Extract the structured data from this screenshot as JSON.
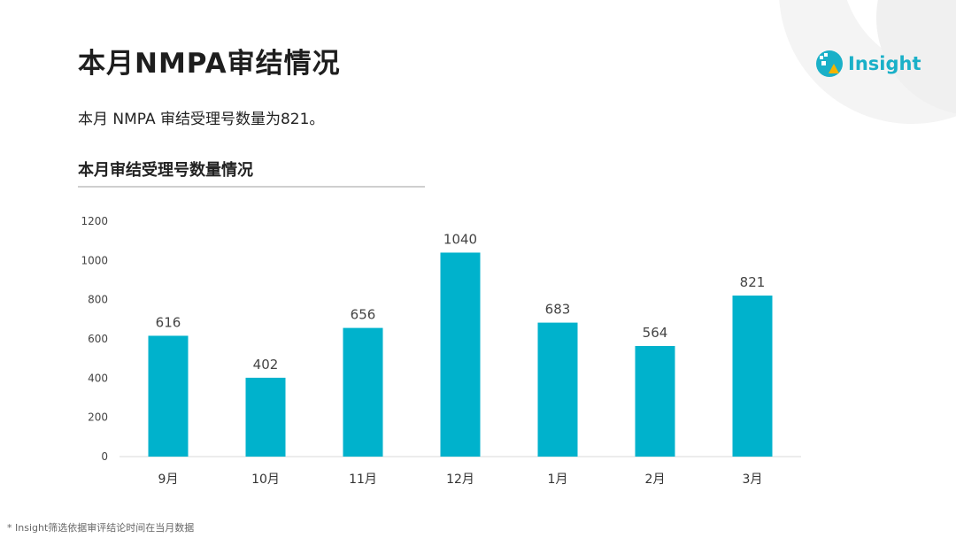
{
  "header": {
    "title": "本月NMPA审结情况",
    "logo_text": "Insight"
  },
  "summary": "本月 NMPA 审结受理号数量为821。",
  "section": {
    "title": "本月审结受理号数量情况"
  },
  "footnote": "* Insight筛选依据审评结论时间在当月数据",
  "colors": {
    "bar": "#00b2cc",
    "accent": "#1ab0c8",
    "logo_yellow": "#f5b400"
  },
  "chart_data": {
    "type": "bar",
    "categories": [
      "9月",
      "10月",
      "11月",
      "12月",
      "1月",
      "2月",
      "3月"
    ],
    "values": [
      616,
      402,
      656,
      1040,
      683,
      564,
      821
    ],
    "ylim": [
      0,
      1200
    ],
    "yticks": [
      0,
      200,
      400,
      600,
      800,
      1000,
      1200
    ],
    "grid": false,
    "data_labels": true
  }
}
